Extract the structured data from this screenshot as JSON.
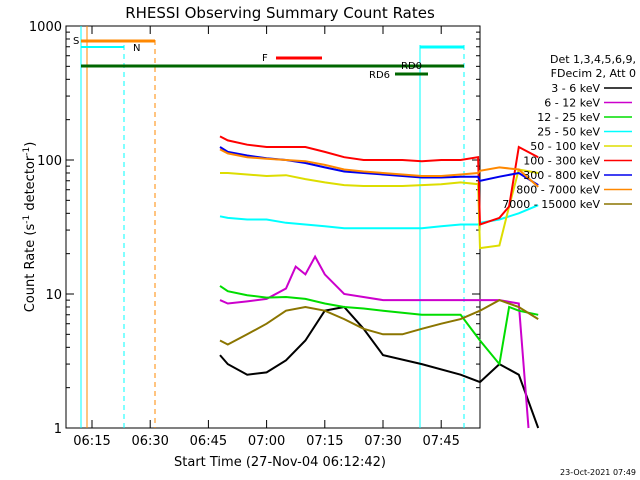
{
  "chart_data": {
    "type": "line",
    "title": "RHESSI Observing Summary Count Rates",
    "xlabel": "Start Time (27-Nov-04 06:12:42)",
    "ylabel_main": "Count Rate (s",
    "ylabel_sup1": "-1",
    "ylabel_mid": " detector",
    "ylabel_sup2": "-1",
    "ylabel_end": ")",
    "y_scale": "log",
    "ylim": [
      1,
      1000
    ],
    "x_ticks": [
      "06:15",
      "06:30",
      "06:45",
      "07:00",
      "07:15",
      "07:30",
      "07:45"
    ],
    "y_ticks": [
      "1",
      "10",
      "100",
      "1000"
    ],
    "legend_header": [
      "Det 1,3,4,5,6,9,",
      "FDecim 2, Att 0"
    ],
    "footer_date": "23-Oct-2021 07:49",
    "series": [
      {
        "name": "3 - 6 keV",
        "color": "#000000",
        "values": [
          [
            6.6,
            3.5
          ],
          [
            7,
            3.0
          ],
          [
            8,
            2.5
          ],
          [
            9,
            2.6
          ],
          [
            10,
            3.2
          ],
          [
            11,
            4.5
          ],
          [
            12,
            7.5
          ],
          [
            13,
            8
          ],
          [
            14,
            5.5
          ],
          [
            15,
            3.5
          ],
          [
            17,
            3.0
          ],
          [
            19,
            2.5
          ],
          [
            20,
            2.2
          ],
          [
            21,
            3.0
          ],
          [
            22,
            2.5
          ],
          [
            23,
            1.0
          ]
        ]
      },
      {
        "name": "6 - 12 keV",
        "color": "#cc00cc",
        "values": [
          [
            6.6,
            9.0
          ],
          [
            7,
            8.5
          ],
          [
            8,
            8.8
          ],
          [
            9,
            9.2
          ],
          [
            10,
            11
          ],
          [
            10.5,
            16
          ],
          [
            11,
            14
          ],
          [
            11.5,
            19
          ],
          [
            12,
            14
          ],
          [
            13,
            10
          ],
          [
            15,
            9.0
          ],
          [
            17,
            9.0
          ],
          [
            19,
            9.0
          ],
          [
            20,
            9.0
          ],
          [
            21,
            9.0
          ],
          [
            22,
            8.5
          ],
          [
            22.5,
            1.0
          ]
        ]
      },
      {
        "name": "12 - 25 keV",
        "color": "#00dd00",
        "values": [
          [
            6.6,
            11.5
          ],
          [
            7,
            10.5
          ],
          [
            8,
            9.8
          ],
          [
            9,
            9.4
          ],
          [
            10,
            9.5
          ],
          [
            11,
            9.2
          ],
          [
            12,
            8.5
          ],
          [
            13,
            8.0
          ],
          [
            14,
            7.8
          ],
          [
            15,
            7.5
          ],
          [
            17,
            7.0
          ],
          [
            19,
            7.0
          ],
          [
            20,
            4.5
          ],
          [
            21,
            3.0
          ],
          [
            21.5,
            8.0
          ],
          [
            22,
            7.5
          ],
          [
            23,
            7.0
          ]
        ]
      },
      {
        "name": "25 - 50 keV",
        "color": "#00ffff",
        "values": [
          [
            6.6,
            38
          ],
          [
            7,
            37
          ],
          [
            8,
            36
          ],
          [
            9,
            36
          ],
          [
            10,
            34
          ],
          [
            11,
            33
          ],
          [
            12,
            32
          ],
          [
            13,
            31
          ],
          [
            14,
            31
          ],
          [
            15,
            31
          ],
          [
            16,
            31
          ],
          [
            17,
            31
          ],
          [
            18,
            32
          ],
          [
            19,
            33
          ],
          [
            19.9,
            33
          ],
          [
            20,
            34
          ],
          [
            21,
            36
          ],
          [
            22,
            40
          ],
          [
            23,
            46
          ]
        ]
      },
      {
        "name": "50 - 100 keV",
        "color": "#dddd00",
        "values": [
          [
            6.6,
            80
          ],
          [
            7,
            80
          ],
          [
            8,
            78
          ],
          [
            9,
            76
          ],
          [
            10,
            77
          ],
          [
            11,
            72
          ],
          [
            12,
            68
          ],
          [
            13,
            65
          ],
          [
            14,
            64
          ],
          [
            15,
            64
          ],
          [
            16,
            64
          ],
          [
            17,
            65
          ],
          [
            18,
            66
          ],
          [
            19,
            68
          ],
          [
            19.9,
            66
          ],
          [
            20,
            22
          ],
          [
            21,
            23
          ],
          [
            21.5,
            45
          ],
          [
            22,
            85
          ],
          [
            23,
            80
          ]
        ]
      },
      {
        "name": "100 - 300 keV",
        "color": "#ff0000",
        "values": [
          [
            6.6,
            150
          ],
          [
            7,
            140
          ],
          [
            8,
            130
          ],
          [
            9,
            125
          ],
          [
            10,
            125
          ],
          [
            11,
            125
          ],
          [
            12,
            115
          ],
          [
            13,
            105
          ],
          [
            14,
            100
          ],
          [
            15,
            100
          ],
          [
            16,
            100
          ],
          [
            17,
            98
          ],
          [
            18,
            100
          ],
          [
            19,
            100
          ],
          [
            19.9,
            105
          ],
          [
            20,
            33
          ],
          [
            21,
            37
          ],
          [
            21.5,
            45
          ],
          [
            22,
            125
          ],
          [
            23,
            105
          ]
        ]
      },
      {
        "name": "300 - 800 keV",
        "color": "#0000ee",
        "values": [
          [
            6.6,
            125
          ],
          [
            7,
            115
          ],
          [
            8,
            108
          ],
          [
            9,
            103
          ],
          [
            10,
            100
          ],
          [
            11,
            95
          ],
          [
            12,
            88
          ],
          [
            13,
            82
          ],
          [
            14,
            80
          ],
          [
            15,
            78
          ],
          [
            16,
            76
          ],
          [
            17,
            74
          ],
          [
            18,
            74
          ],
          [
            19,
            75
          ],
          [
            19.9,
            75
          ],
          [
            20,
            70
          ],
          [
            21,
            75
          ],
          [
            22,
            80
          ],
          [
            23,
            65
          ]
        ]
      },
      {
        "name": "800 - 7000 keV",
        "color": "#ff8800",
        "values": [
          [
            6.6,
            120
          ],
          [
            7,
            112
          ],
          [
            8,
            105
          ],
          [
            9,
            102
          ],
          [
            10,
            100
          ],
          [
            11,
            98
          ],
          [
            12,
            92
          ],
          [
            13,
            85
          ],
          [
            14,
            82
          ],
          [
            15,
            80
          ],
          [
            16,
            78
          ],
          [
            17,
            76
          ],
          [
            18,
            76
          ],
          [
            19,
            78
          ],
          [
            19.9,
            80
          ],
          [
            20,
            83
          ],
          [
            21,
            88
          ],
          [
            22,
            85
          ],
          [
            23,
            63
          ]
        ]
      },
      {
        "name": "7000 - 15000 keV",
        "color": "#8b7500",
        "values": [
          [
            6.6,
            4.5
          ],
          [
            7,
            4.2
          ],
          [
            8,
            5
          ],
          [
            9,
            6
          ],
          [
            10,
            7.5
          ],
          [
            11,
            8
          ],
          [
            12,
            7.5
          ],
          [
            13,
            6.5
          ],
          [
            14,
            5.5
          ],
          [
            15,
            5.0
          ],
          [
            16,
            5.0
          ],
          [
            17,
            5.5
          ],
          [
            18,
            6.0
          ],
          [
            19,
            6.5
          ],
          [
            20,
            7.5
          ],
          [
            21,
            9
          ],
          [
            22,
            8
          ],
          [
            23,
            6.5
          ]
        ]
      }
    ],
    "annotations": {
      "S": {
        "label": "S",
        "color": "#ff8800"
      },
      "N": {
        "label": "N",
        "color": "#00ffff"
      },
      "F": {
        "label": "F",
        "color": "#ff0000"
      },
      "RD0": {
        "label": "RD0",
        "color": "#006600"
      },
      "RD6": {
        "label": "RD6",
        "color": "#006600"
      }
    }
  }
}
